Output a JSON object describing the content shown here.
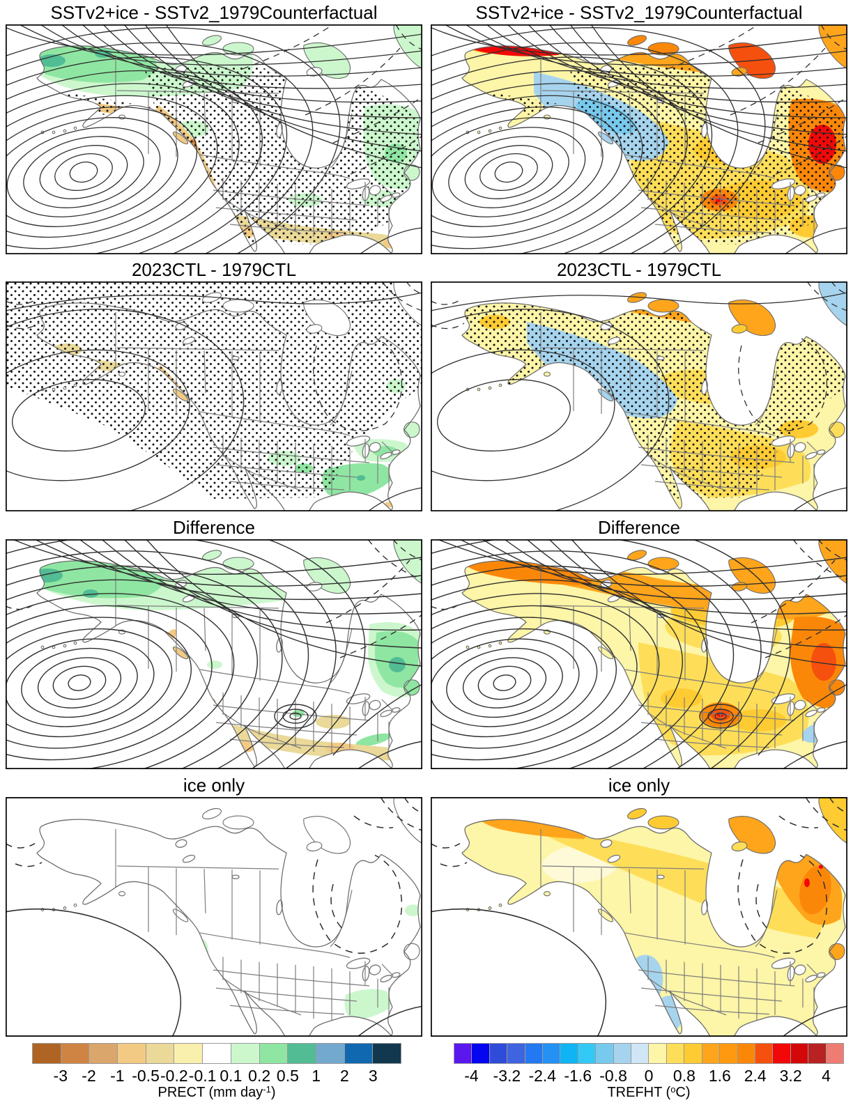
{
  "panels": [
    {
      "id": "p1",
      "row": 1,
      "col": "left",
      "variable": "PRECT",
      "title": "SSTv2+ice - SSTv2_1979Counterfactual"
    },
    {
      "id": "p2",
      "row": 1,
      "col": "right",
      "variable": "TREFHT",
      "title": "SSTv2+ice - SSTv2_1979Counterfactual"
    },
    {
      "id": "p3",
      "row": 2,
      "col": "left",
      "variable": "PRECT",
      "title": "2023CTL - 1979CTL"
    },
    {
      "id": "p4",
      "row": 2,
      "col": "right",
      "variable": "TREFHT",
      "title": "2023CTL - 1979CTL"
    },
    {
      "id": "p5",
      "row": 3,
      "col": "left",
      "variable": "PRECT",
      "title": "Difference"
    },
    {
      "id": "p6",
      "row": 3,
      "col": "right",
      "variable": "TREFHT",
      "title": "Difference"
    },
    {
      "id": "p7",
      "row": 4,
      "col": "left",
      "variable": "PRECT",
      "title": "ice only"
    },
    {
      "id": "p8",
      "row": 4,
      "col": "right",
      "variable": "TREFHT",
      "title": "ice only"
    }
  ],
  "colorbars": {
    "prect": {
      "label_pre": "PRECT (mm day",
      "label_sup": "-1",
      "label_post": ")",
      "tick_every": 1,
      "ticks": [
        "-3",
        "-2",
        "-1",
        "-0.5",
        "-0.2",
        "-0.1",
        "0.1",
        "0.2",
        "0.5",
        "1",
        "2",
        "3"
      ],
      "colors": [
        "#af6423",
        "#d08444",
        "#dba66b",
        "#f3ca84",
        "#ead998",
        "#faf0ae",
        "#ffffff",
        "#ccf7cd",
        "#8fe6a2",
        "#52bc94",
        "#74a9cf",
        "#1068b0",
        "#123850"
      ]
    },
    "trefht": {
      "label_pre": "TREFHT (",
      "label_sup": "o",
      "label_post": "C)",
      "tick_every": 2,
      "ticks": [
        "-4",
        "-3.2",
        "-2.4",
        "-1.6",
        "-0.8",
        "0",
        "0.8",
        "1.6",
        "2.4",
        "3.2",
        "4"
      ],
      "colors": [
        "#5a17ee",
        "#0505f0",
        "#2e4bd9",
        "#3f64e0",
        "#2379f2",
        "#2492f5",
        "#0fb4f5",
        "#33c9f6",
        "#77c9ee",
        "#a6d4ee",
        "#d0e5f6",
        "#fdf5a7",
        "#fede58",
        "#fecb32",
        "#ffa51c",
        "#ff9a10",
        "#fb8709",
        "#f6500e",
        "#f20808",
        "#d40808",
        "#b82222",
        "#ee7c72"
      ]
    }
  },
  "chart_data": {
    "type": "heatmap",
    "subtype": "multi-panel filled-contour geographic maps of North America with geopotential-height contour overlays and significance stippling",
    "grid": "4 rows x 2 columns; left column = PRECT anomalies, right column = TREFHT anomalies; each row shares one contour field",
    "row_titles": [
      "SSTv2+ice - SSTv2_1979Counterfactual",
      "2023CTL - 1979CTL",
      "Difference",
      "ice only"
    ],
    "columns": [
      {
        "variable": "PRECT",
        "units": "mm day-1",
        "scale_ticks": [
          -3,
          -2,
          -1,
          -0.5,
          -0.2,
          -0.1,
          0.1,
          0.2,
          0.5,
          1,
          2,
          3
        ],
        "n_color_bins": 13
      },
      {
        "variable": "TREFHT",
        "units": "degC",
        "scale_ticks": [
          -4,
          -3.2,
          -2.4,
          -1.6,
          -0.8,
          0,
          0.8,
          1.6,
          2.4,
          3.2,
          4
        ],
        "n_color_bins": 22
      }
    ],
    "panel_features": [
      {
        "panel": "p1",
        "summary": "Wet (+0.2 to +1 mm/day) band over Alaska and NW Canada and over E Canada/Quebec; dry (-0.2 to -1) along BC/California coast and southern US; dense closed contours (Aleutian low) over NE Pacific; stippling over central/eastern continent"
      },
      {
        "panel": "p2",
        "summary": "Warm +2.4 to +4 C over N Alaska, Arctic islands and Quebec/Labrador; cool -0.4 to -1.2 C band over interior Alaska/Yukon/BC; +0.8 to +1.6 C over most of US; +1.6 to +2.4 C closed anomaly over Colorado; same Pacific low contours; stippling over interior"
      },
      {
        "panel": "p3",
        "summary": "Mostly near-zero; weak dry along BC coast; wet +0.2 to +0.5 over California, central plains, Ohio valley and Gulf states; weak dry SE coast; stippling nearly everywhere; weak smooth contours"
      },
      {
        "panel": "p4",
        "summary": "Warm +0.4 to +1 C over most land; cool -0.4 to -0.8 C band Alaska-Yukon-NWT; +1.6 to +2.4 C along Arctic coast and archipelago; dashed contour ring near Hudson Bay; stippling over land"
      },
      {
        "panel": "p5",
        "summary": "Wet band Alaska/NW Canada and Quebec/Labrador; dry California coast (to -2) and southern US; very dense closed low contours over NE Pacific; small closed contour over Colorado; no stippling"
      },
      {
        "panel": "p6",
        "summary": "Warm +2.4 to +4 C Alaska north slope; +1.6 to +2.4 C N Canada and Quebec/Labrador; +0.8 to +1.6 C over US; closed +1.6 C blob over Colorado; slight cool patch over Carolinas; dense low contours"
      },
      {
        "panel": "p7",
        "summary": "Near-zero precipitation everywhere; faint +0.1 to +0.2 patches over Oregon coast, Tennessee/Southeast and Labrador; one long weak contour and dashed contours near Hudson Bay and corners"
      },
      {
        "panel": "p8",
        "summary": "Warm +0.2 to +0.8 C over most land; +0.8 to +1.6 C N Alaska and Nunavut/Quebec-Labrador (local +2.4); slight cool -0.2 to -0.6 C over California/Southwest and NW Mexico; weak contours with dashed Hudson Bay ring"
      }
    ]
  }
}
